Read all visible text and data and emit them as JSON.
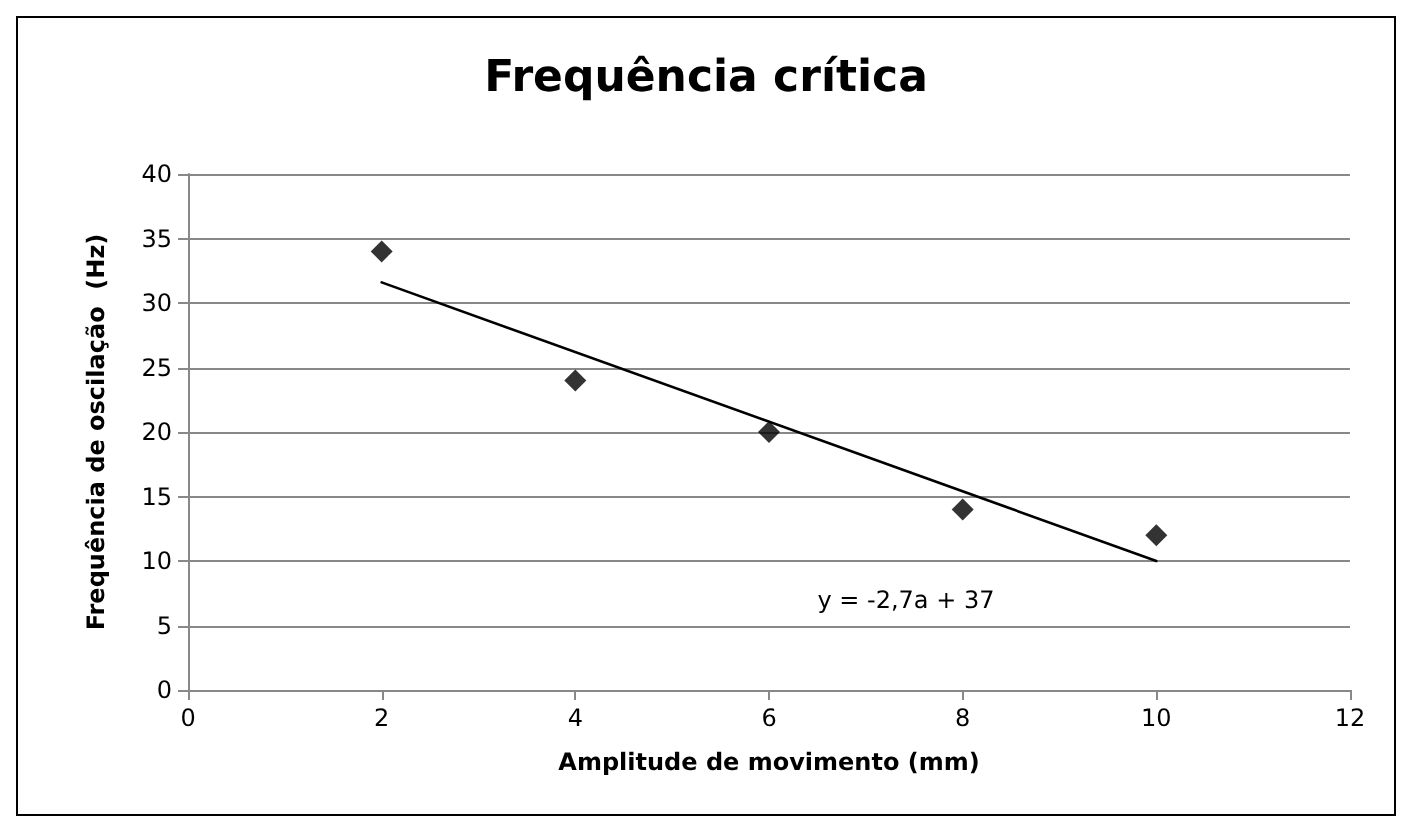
{
  "chart_data": {
    "type": "scatter",
    "title": "Frequência crítica",
    "xlabel": "Amplitude de movimento (mm)",
    "ylabel": "Frequência de oscilação  (Hz)",
    "x": [
      2,
      4,
      6,
      8,
      10
    ],
    "series": [
      {
        "type": "scatter",
        "color": "#000000",
        "marker": "diamond",
        "values": [
          34,
          24,
          20,
          14,
          12
        ]
      },
      {
        "type": "line",
        "color": "#000000",
        "marker": "none",
        "line_style": "solid",
        "x": [
          2,
          10
        ],
        "values": [
          31.6,
          10
        ]
      }
    ],
    "xlim": [
      0,
      12
    ],
    "xticks": [
      0,
      2,
      4,
      6,
      8,
      10,
      12
    ],
    "ylim": [
      0,
      40
    ],
    "yticks": [
      0,
      5,
      10,
      15,
      20,
      25,
      30,
      35,
      40
    ],
    "grid": "y",
    "annotations": [
      "y = -2,7a + 37"
    ]
  }
}
